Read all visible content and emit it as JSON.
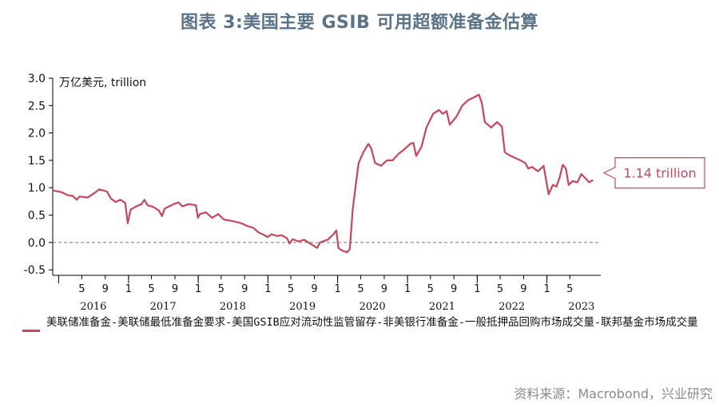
{
  "title": "图表 3:美国主要 GSIB 可用超额准备金估算",
  "source": "资料来源：Macrobond，兴业研究",
  "colors": {
    "series": "#c8465a",
    "title": "#5b7388",
    "annotation_border": "#c8465a"
  },
  "chart_data": {
    "type": "line",
    "unit_label": "万亿美元, trillion",
    "ylim": [
      -0.6,
      3.0
    ],
    "yticks": [
      "3.0",
      "2.5",
      "2.0",
      "1.5",
      "1.0",
      "0.5",
      "0.0",
      "-0.5"
    ],
    "ytick_values": [
      3.0,
      2.5,
      2.0,
      1.5,
      1.0,
      0.5,
      0.0,
      -0.5
    ],
    "zero_line": "dashed",
    "xlim": [
      "2015-12-01",
      "2023-10-10"
    ],
    "month_ticks": [
      {
        "label": "5",
        "date": "2016-05-01"
      },
      {
        "label": "9",
        "date": "2016-09-01"
      },
      {
        "label": "1",
        "date": "2017-01-01"
      },
      {
        "label": "5",
        "date": "2017-05-01"
      },
      {
        "label": "9",
        "date": "2017-09-01"
      },
      {
        "label": "1",
        "date": "2018-01-01"
      },
      {
        "label": "5",
        "date": "2018-05-01"
      },
      {
        "label": "9",
        "date": "2018-09-01"
      },
      {
        "label": "1",
        "date": "2019-01-01"
      },
      {
        "label": "5",
        "date": "2019-05-01"
      },
      {
        "label": "9",
        "date": "2019-09-01"
      },
      {
        "label": "1",
        "date": "2020-01-01"
      },
      {
        "label": "5",
        "date": "2020-05-01"
      },
      {
        "label": "9",
        "date": "2020-09-01"
      },
      {
        "label": "1",
        "date": "2021-01-01"
      },
      {
        "label": "5",
        "date": "2021-05-01"
      },
      {
        "label": "9",
        "date": "2021-09-01"
      },
      {
        "label": "1",
        "date": "2022-01-01"
      },
      {
        "label": "5",
        "date": "2022-05-01"
      },
      {
        "label": "9",
        "date": "2022-09-01"
      },
      {
        "label": "1",
        "date": "2023-01-01"
      },
      {
        "label": "5",
        "date": "2023-05-01"
      }
    ],
    "year_labels": [
      {
        "label": "2016",
        "date": "2016-07-01"
      },
      {
        "label": "2017",
        "date": "2017-07-01"
      },
      {
        "label": "2018",
        "date": "2018-07-01"
      },
      {
        "label": "2019",
        "date": "2019-07-01"
      },
      {
        "label": "2020",
        "date": "2020-07-01"
      },
      {
        "label": "2021",
        "date": "2021-07-01"
      },
      {
        "label": "2022",
        "date": "2022-07-01"
      },
      {
        "label": "2023",
        "date": "2023-07-01"
      }
    ],
    "annotation": {
      "text": "1.14 trillion",
      "value": 1.14
    },
    "series": [
      {
        "name": "美联储准备金-美联储最低准备金要求-美国GSIB应对流动性监管留存-非美银行准备金-一般抵押品回购市场成交量-联邦基金市场成交量",
        "points": [
          [
            "2015-12-01",
            0.95
          ],
          [
            "2016-01-15",
            0.92
          ],
          [
            "2016-02-20",
            0.86
          ],
          [
            "2016-03-15",
            0.85
          ],
          [
            "2016-04-05",
            0.78
          ],
          [
            "2016-04-20",
            0.84
          ],
          [
            "2016-06-01",
            0.82
          ],
          [
            "2016-07-05",
            0.9
          ],
          [
            "2016-08-01",
            0.97
          ],
          [
            "2016-09-10",
            0.93
          ],
          [
            "2016-10-01",
            0.8
          ],
          [
            "2016-10-25",
            0.74
          ],
          [
            "2016-11-20",
            0.78
          ],
          [
            "2016-12-15",
            0.72
          ],
          [
            "2016-12-28",
            0.35
          ],
          [
            "2017-01-12",
            0.6
          ],
          [
            "2017-02-10",
            0.66
          ],
          [
            "2017-03-10",
            0.7
          ],
          [
            "2017-03-25",
            0.78
          ],
          [
            "2017-04-10",
            0.68
          ],
          [
            "2017-05-10",
            0.65
          ],
          [
            "2017-06-10",
            0.58
          ],
          [
            "2017-06-25",
            0.48
          ],
          [
            "2017-07-10",
            0.62
          ],
          [
            "2017-08-01",
            0.66
          ],
          [
            "2017-08-25",
            0.7
          ],
          [
            "2017-09-20",
            0.73
          ],
          [
            "2017-10-10",
            0.66
          ],
          [
            "2017-11-10",
            0.7
          ],
          [
            "2017-12-20",
            0.68
          ],
          [
            "2017-12-30",
            0.45
          ],
          [
            "2018-01-10",
            0.52
          ],
          [
            "2018-02-10",
            0.55
          ],
          [
            "2018-03-15",
            0.45
          ],
          [
            "2018-04-15",
            0.52
          ],
          [
            "2018-05-15",
            0.42
          ],
          [
            "2018-06-15",
            0.4
          ],
          [
            "2018-07-15",
            0.38
          ],
          [
            "2018-08-15",
            0.35
          ],
          [
            "2018-09-15",
            0.3
          ],
          [
            "2018-10-15",
            0.27
          ],
          [
            "2018-11-15",
            0.18
          ],
          [
            "2018-12-10",
            0.14
          ],
          [
            "2018-12-30",
            0.1
          ],
          [
            "2019-01-20",
            0.15
          ],
          [
            "2019-02-15",
            0.12
          ],
          [
            "2019-03-15",
            0.13
          ],
          [
            "2019-04-10",
            0.08
          ],
          [
            "2019-04-25",
            -0.02
          ],
          [
            "2019-05-10",
            0.06
          ],
          [
            "2019-06-10",
            0.02
          ],
          [
            "2019-07-10",
            0.05
          ],
          [
            "2019-08-10",
            -0.02
          ],
          [
            "2019-09-16",
            -0.1
          ],
          [
            "2019-10-01",
            0.0
          ],
          [
            "2019-11-10",
            0.05
          ],
          [
            "2019-12-10",
            0.15
          ],
          [
            "2019-12-25",
            0.22
          ],
          [
            "2020-01-05",
            -0.1
          ],
          [
            "2020-01-25",
            -0.15
          ],
          [
            "2020-02-20",
            -0.18
          ],
          [
            "2020-03-05",
            -0.12
          ],
          [
            "2020-03-20",
            0.6
          ],
          [
            "2020-04-05",
            1.05
          ],
          [
            "2020-04-20",
            1.45
          ],
          [
            "2020-05-15",
            1.65
          ],
          [
            "2020-06-10",
            1.8
          ],
          [
            "2020-06-25",
            1.72
          ],
          [
            "2020-07-15",
            1.45
          ],
          [
            "2020-08-15",
            1.4
          ],
          [
            "2020-09-15",
            1.5
          ],
          [
            "2020-10-15",
            1.5
          ],
          [
            "2020-11-15",
            1.62
          ],
          [
            "2020-12-15",
            1.7
          ],
          [
            "2021-01-15",
            1.8
          ],
          [
            "2021-02-01",
            1.82
          ],
          [
            "2021-02-15",
            1.58
          ],
          [
            "2021-03-15",
            1.75
          ],
          [
            "2021-04-10",
            2.1
          ],
          [
            "2021-05-15",
            2.35
          ],
          [
            "2021-06-15",
            2.42
          ],
          [
            "2021-07-05",
            2.35
          ],
          [
            "2021-07-25",
            2.4
          ],
          [
            "2021-08-10",
            2.15
          ],
          [
            "2021-09-15",
            2.3
          ],
          [
            "2021-10-15",
            2.5
          ],
          [
            "2021-11-15",
            2.6
          ],
          [
            "2021-12-15",
            2.65
          ],
          [
            "2022-01-10",
            2.7
          ],
          [
            "2022-01-25",
            2.55
          ],
          [
            "2022-02-10",
            2.2
          ],
          [
            "2022-03-15",
            2.1
          ],
          [
            "2022-04-15",
            2.2
          ],
          [
            "2022-05-10",
            2.12
          ],
          [
            "2022-05-25",
            1.65
          ],
          [
            "2022-06-15",
            1.6
          ],
          [
            "2022-07-15",
            1.55
          ],
          [
            "2022-08-15",
            1.5
          ],
          [
            "2022-09-10",
            1.45
          ],
          [
            "2022-09-25",
            1.35
          ],
          [
            "2022-10-15",
            1.38
          ],
          [
            "2022-11-15",
            1.3
          ],
          [
            "2022-12-15",
            1.4
          ],
          [
            "2022-12-30",
            1.1
          ],
          [
            "2023-01-10",
            0.88
          ],
          [
            "2023-02-01",
            1.05
          ],
          [
            "2023-02-20",
            1.02
          ],
          [
            "2023-03-10",
            1.2
          ],
          [
            "2023-03-25",
            1.42
          ],
          [
            "2023-04-10",
            1.35
          ],
          [
            "2023-04-25",
            1.05
          ],
          [
            "2023-05-15",
            1.12
          ],
          [
            "2023-06-10",
            1.1
          ],
          [
            "2023-06-30",
            1.25
          ],
          [
            "2023-07-20",
            1.18
          ],
          [
            "2023-08-10",
            1.1
          ],
          [
            "2023-08-30",
            1.14
          ]
        ]
      }
    ]
  }
}
